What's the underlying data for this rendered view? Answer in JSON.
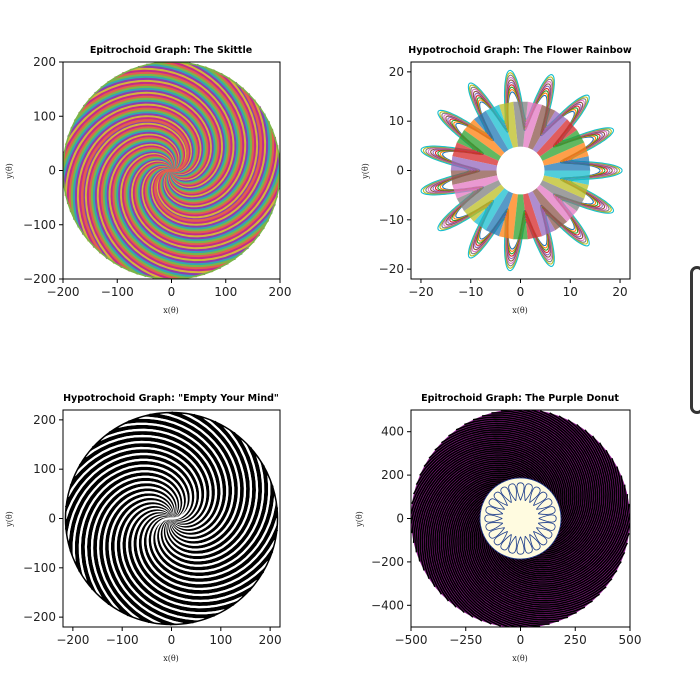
{
  "chart_data": [
    {
      "type": "line",
      "title": "Epitrochoid Graph: The Skittle",
      "xlabel": "x(θ)",
      "ylabel": "y(θ)",
      "xlim": [
        -200,
        200
      ],
      "ylim": [
        -200,
        200
      ],
      "xticks": [
        -200,
        -100,
        0,
        100,
        200
      ],
      "yticks": [
        -200,
        -100,
        0,
        100,
        200
      ],
      "curve": {
        "family": "epitrochoid",
        "R": 100,
        "r": 1,
        "d": 100,
        "loops": 80,
        "sweep": 0.65
      },
      "colors": [
        "#c42a8a",
        "#e0624b",
        "#7ab648",
        "#34a7b0",
        "#8e3bb0",
        "#d4b43a"
      ]
    },
    {
      "type": "line",
      "title": "Hypotrochoid Graph: The Flower Rainbow",
      "xlabel": "x(θ)",
      "ylabel": "y(θ)",
      "xlim": [
        -22,
        22
      ],
      "ylim": [
        -22,
        22
      ],
      "xticks": [
        -20,
        -10,
        0,
        10,
        20
      ],
      "yticks": [
        -20,
        -10,
        0,
        10,
        20
      ],
      "curve": {
        "family": "hypotrochoid",
        "R": 21,
        "r": 5.6,
        "d": 7,
        "petals": 15
      },
      "colors": [
        "#1f77b4",
        "#ff7f0e",
        "#2ca02c",
        "#d62728",
        "#9467bd",
        "#8c564b",
        "#e377c2",
        "#7f7f7f",
        "#bcbd22",
        "#17becf"
      ]
    },
    {
      "type": "line",
      "title": "Hypotrochoid Graph: \"Empty Your Mind\"",
      "xlabel": "x(θ)",
      "ylabel": "y(θ)",
      "xlim": [
        -220,
        220
      ],
      "ylim": [
        -220,
        220
      ],
      "xticks": [
        -200,
        -100,
        0,
        100,
        200
      ],
      "yticks": [
        -200,
        -100,
        0,
        100,
        200
      ],
      "curve": {
        "family": "hypotrochoid",
        "R": 220,
        "loops": 60,
        "sweep": 0.55
      },
      "colors": [
        "#000000",
        "#ffffff"
      ]
    },
    {
      "type": "line",
      "title": "Epitrochoid Graph: The Purple Donut",
      "xlabel": "x(θ)",
      "ylabel": "y(θ)",
      "xlim": [
        -500,
        500
      ],
      "ylim": [
        -500,
        500
      ],
      "xticks": [
        -500,
        -250,
        0,
        250,
        500
      ],
      "yticks": [
        -400,
        -200,
        0,
        200,
        400
      ],
      "curve": {
        "family": "epitrochoid",
        "outer": 500,
        "inner": 185,
        "loops": 70
      },
      "colors": [
        "#8a1a8a",
        "#000000",
        "#fffbe0",
        "#1a3a8a"
      ]
    }
  ]
}
